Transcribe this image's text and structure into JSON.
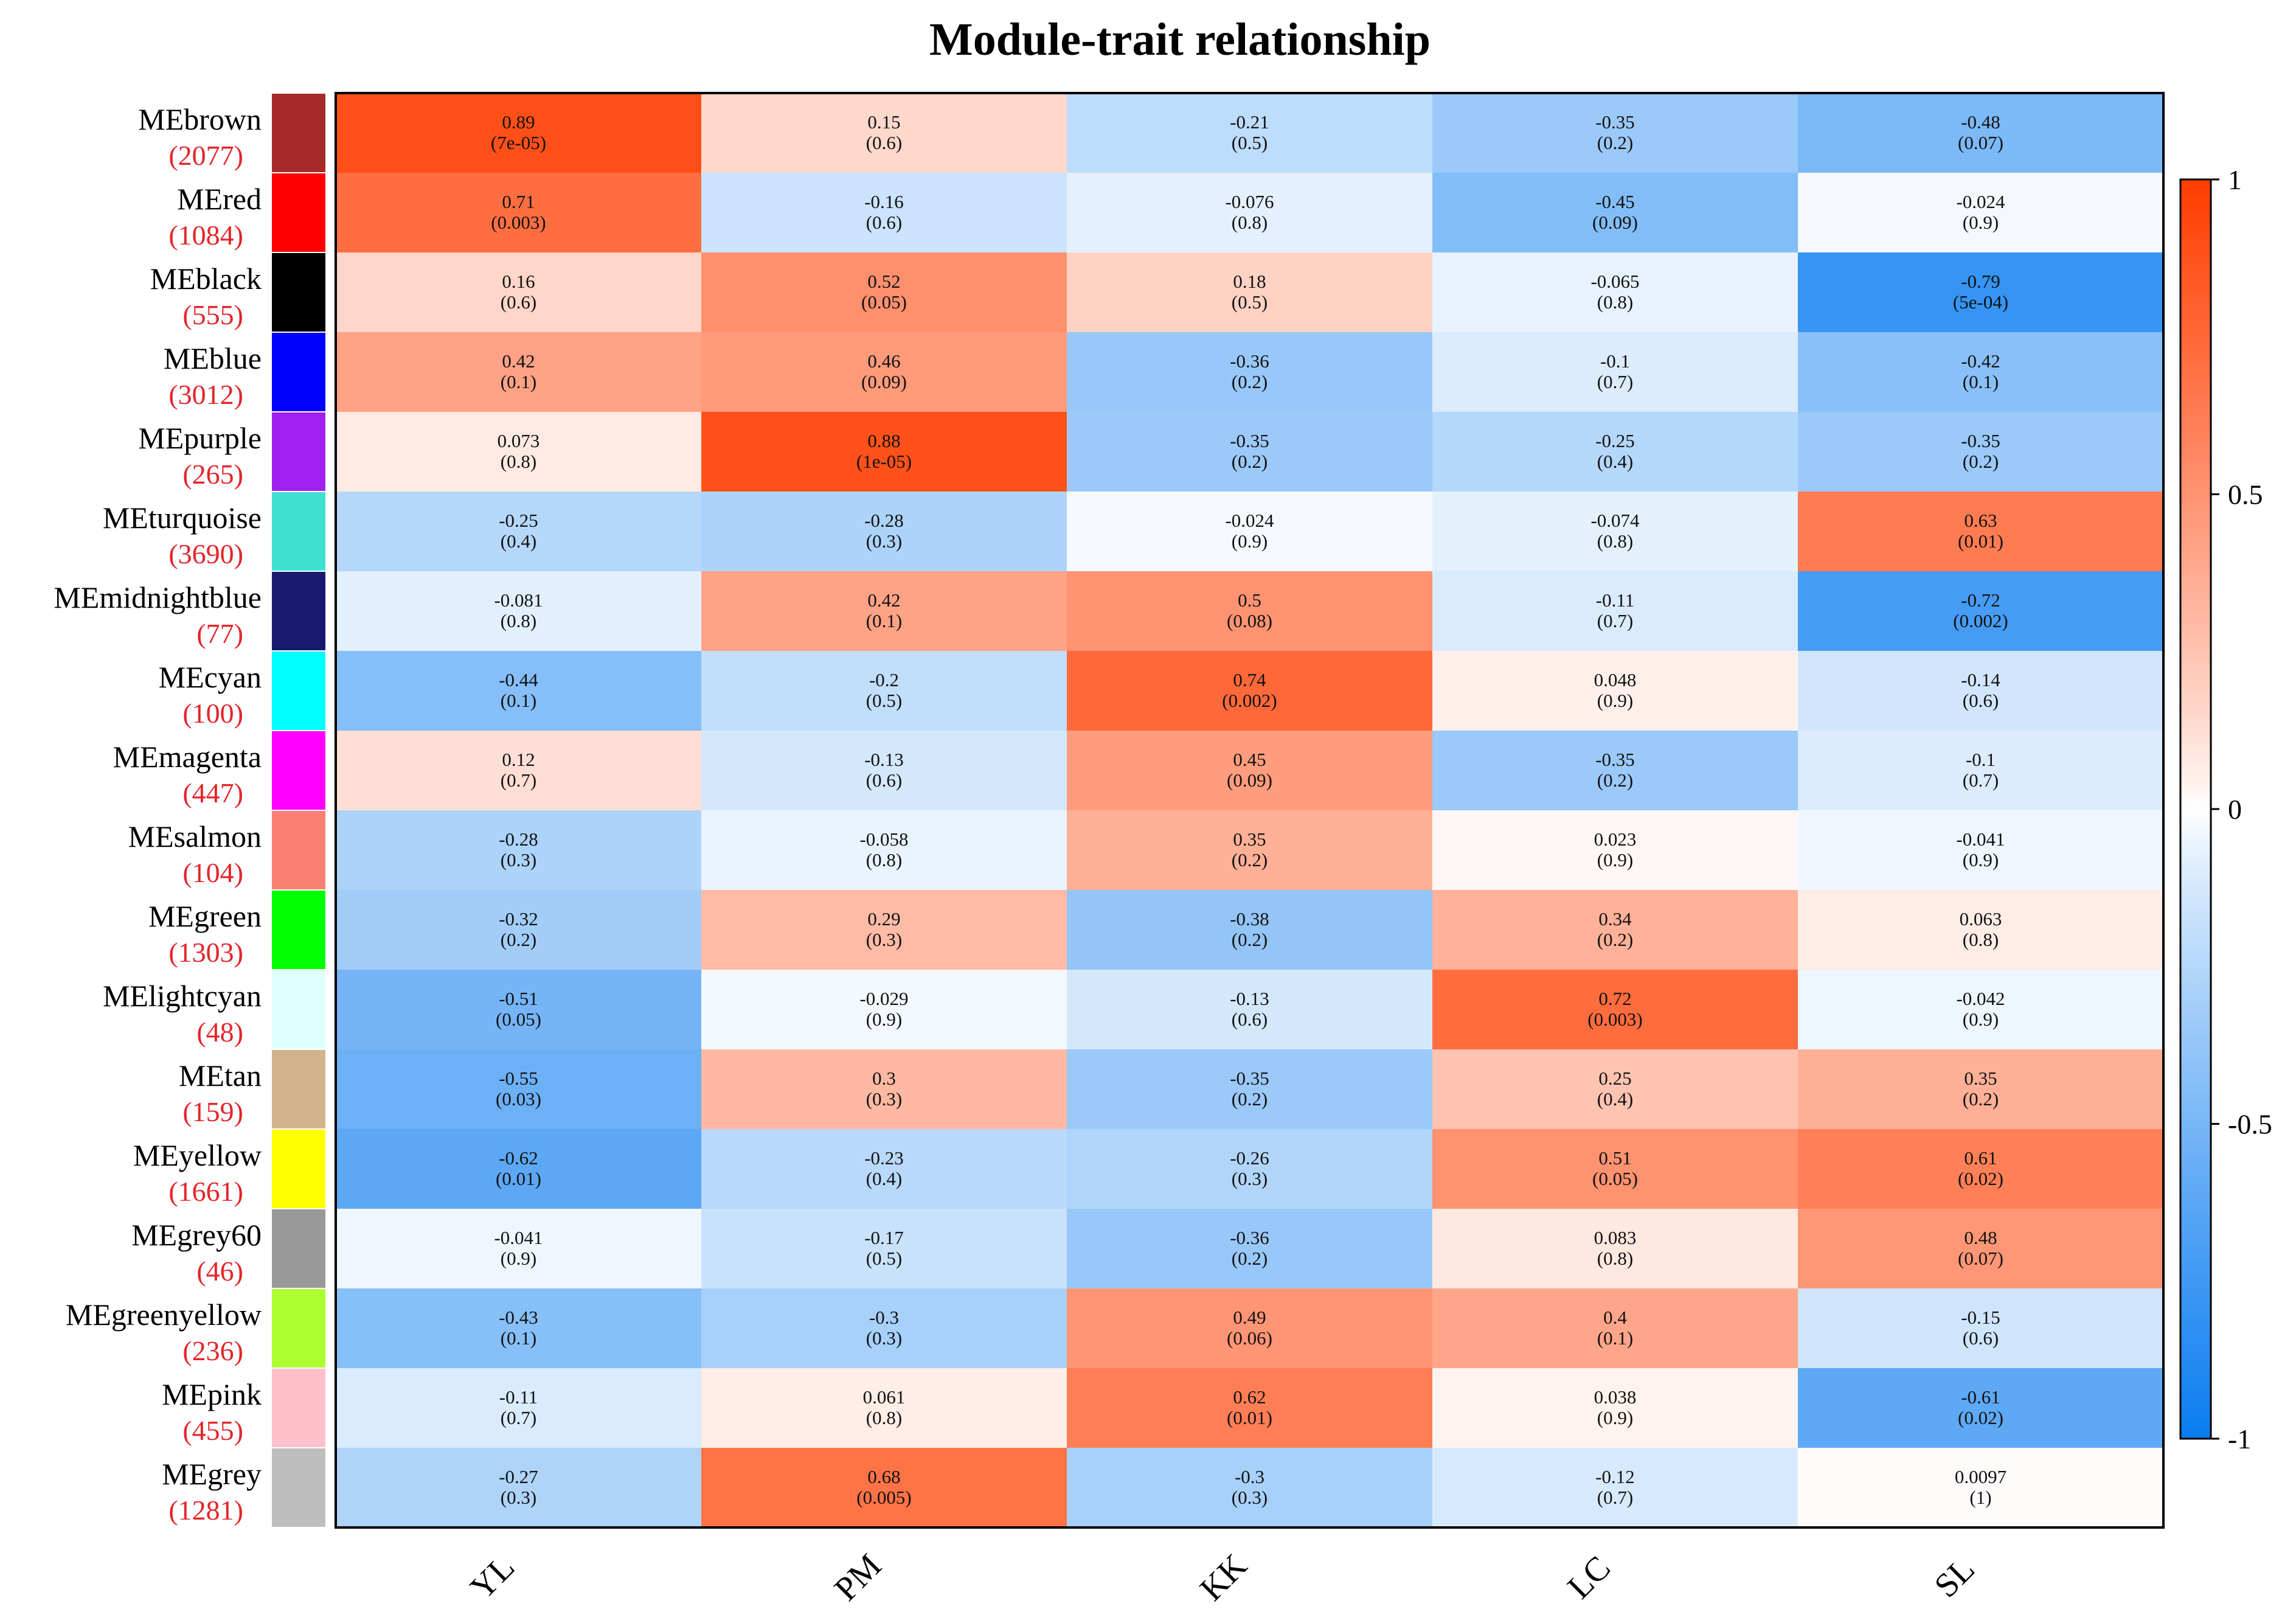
{
  "chart_data": {
    "type": "heatmap",
    "title": "Module-trait relationship",
    "columns": [
      "YL",
      "PM",
      "KK",
      "LC",
      "SL"
    ],
    "rows": [
      {
        "name": "MEbrown",
        "count": "(2077)",
        "swatch": "#A52A2A",
        "values": [
          "0.89",
          "0.15",
          "-0.21",
          "-0.35",
          "-0.48"
        ],
        "pvalues": [
          "(7e-05)",
          "(0.6)",
          "(0.5)",
          "(0.2)",
          "(0.07)"
        ]
      },
      {
        "name": "MEred",
        "count": "(1084)",
        "swatch": "#FF0000",
        "values": [
          "0.71",
          "-0.16",
          "-0.076",
          "-0.45",
          "-0.024"
        ],
        "pvalues": [
          "(0.003)",
          "(0.6)",
          "(0.8)",
          "(0.09)",
          "(0.9)"
        ]
      },
      {
        "name": "MEblack",
        "count": "(555)",
        "swatch": "#000000",
        "values": [
          "0.16",
          "0.52",
          "0.18",
          "-0.065",
          "-0.79"
        ],
        "pvalues": [
          "(0.6)",
          "(0.05)",
          "(0.5)",
          "(0.8)",
          "(5e-04)"
        ]
      },
      {
        "name": "MEblue",
        "count": "(3012)",
        "swatch": "#0000FF",
        "values": [
          "0.42",
          "0.46",
          "-0.36",
          "-0.1",
          "-0.42"
        ],
        "pvalues": [
          "(0.1)",
          "(0.09)",
          "(0.2)",
          "(0.7)",
          "(0.1)"
        ]
      },
      {
        "name": "MEpurple",
        "count": "(265)",
        "swatch": "#A020F0",
        "values": [
          "0.073",
          "0.88",
          "-0.35",
          "-0.25",
          "-0.35"
        ],
        "pvalues": [
          "(0.8)",
          "(1e-05)",
          "(0.2)",
          "(0.4)",
          "(0.2)"
        ]
      },
      {
        "name": "MEturquoise",
        "count": "(3690)",
        "swatch": "#40E0D0",
        "values": [
          "-0.25",
          "-0.28",
          "-0.024",
          "-0.074",
          "0.63"
        ],
        "pvalues": [
          "(0.4)",
          "(0.3)",
          "(0.9)",
          "(0.8)",
          "(0.01)"
        ]
      },
      {
        "name": "MEmidnightblue",
        "count": "(77)",
        "swatch": "#191970",
        "values": [
          "-0.081",
          "0.42",
          "0.5",
          "-0.11",
          "-0.72"
        ],
        "pvalues": [
          "(0.8)",
          "(0.1)",
          "(0.08)",
          "(0.7)",
          "(0.002)"
        ]
      },
      {
        "name": "MEcyan",
        "count": "(100)",
        "swatch": "#00FFFF",
        "values": [
          "-0.44",
          "-0.2",
          "0.74",
          "0.048",
          "-0.14"
        ],
        "pvalues": [
          "(0.1)",
          "(0.5)",
          "(0.002)",
          "(0.9)",
          "(0.6)"
        ]
      },
      {
        "name": "MEmagenta",
        "count": "(447)",
        "swatch": "#FF00FF",
        "values": [
          "0.12",
          "-0.13",
          "0.45",
          "-0.35",
          "-0.1"
        ],
        "pvalues": [
          "(0.7)",
          "(0.6)",
          "(0.09)",
          "(0.2)",
          "(0.7)"
        ]
      },
      {
        "name": "MEsalmon",
        "count": "(104)",
        "swatch": "#FA8072",
        "values": [
          "-0.28",
          "-0.058",
          "0.35",
          "0.023",
          "-0.041"
        ],
        "pvalues": [
          "(0.3)",
          "(0.8)",
          "(0.2)",
          "(0.9)",
          "(0.9)"
        ]
      },
      {
        "name": "MEgreen",
        "count": "(1303)",
        "swatch": "#00FF00",
        "values": [
          "-0.32",
          "0.29",
          "-0.38",
          "0.34",
          "0.063"
        ],
        "pvalues": [
          "(0.2)",
          "(0.3)",
          "(0.2)",
          "(0.2)",
          "(0.8)"
        ]
      },
      {
        "name": "MElightcyan",
        "count": "(48)",
        "swatch": "#E0FFFF",
        "values": [
          "-0.51",
          "-0.029",
          "-0.13",
          "0.72",
          "-0.042"
        ],
        "pvalues": [
          "(0.05)",
          "(0.9)",
          "(0.6)",
          "(0.003)",
          "(0.9)"
        ]
      },
      {
        "name": "MEtan",
        "count": "(159)",
        "swatch": "#D2B48C",
        "values": [
          "-0.55",
          "0.3",
          "-0.35",
          "0.25",
          "0.35"
        ],
        "pvalues": [
          "(0.03)",
          "(0.3)",
          "(0.2)",
          "(0.4)",
          "(0.2)"
        ]
      },
      {
        "name": "MEyellow",
        "count": "(1661)",
        "swatch": "#FFFF00",
        "values": [
          "-0.62",
          "-0.23",
          "-0.26",
          "0.51",
          "0.61"
        ],
        "pvalues": [
          "(0.01)",
          "(0.4)",
          "(0.3)",
          "(0.05)",
          "(0.02)"
        ]
      },
      {
        "name": "MEgrey60",
        "count": "(46)",
        "swatch": "#999999",
        "values": [
          "-0.041",
          "-0.17",
          "-0.36",
          "0.083",
          "0.48"
        ],
        "pvalues": [
          "(0.9)",
          "(0.5)",
          "(0.2)",
          "(0.8)",
          "(0.07)"
        ]
      },
      {
        "name": "MEgreenyellow",
        "count": "(236)",
        "swatch": "#ADFF2F",
        "values": [
          "-0.43",
          "-0.3",
          "0.49",
          "0.4",
          "-0.15"
        ],
        "pvalues": [
          "(0.1)",
          "(0.3)",
          "(0.06)",
          "(0.1)",
          "(0.6)"
        ]
      },
      {
        "name": "MEpink",
        "count": "(455)",
        "swatch": "#FFC0CB",
        "values": [
          "-0.11",
          "0.061",
          "0.62",
          "0.038",
          "-0.61"
        ],
        "pvalues": [
          "(0.7)",
          "(0.8)",
          "(0.01)",
          "(0.9)",
          "(0.02)"
        ]
      },
      {
        "name": "MEgrey",
        "count": "(1281)",
        "swatch": "#BEBEBE",
        "values": [
          "-0.27",
          "0.68",
          "-0.3",
          "-0.12",
          "0.0097"
        ],
        "pvalues": [
          "(0.3)",
          "(0.005)",
          "(0.3)",
          "(0.7)",
          "(1)"
        ]
      }
    ],
    "colorbar": {
      "range": [
        -1,
        1
      ],
      "ticks": [
        "1",
        "0.5",
        "0",
        "-0.5",
        "-1"
      ],
      "tick_values": [
        1,
        0.5,
        0,
        -0.5,
        -1
      ],
      "colors": {
        "positive": "#FF3D00",
        "neutral": "#FFFFFF",
        "negative": "#0A7CF0"
      }
    },
    "count_label_color": "#E4242A"
  }
}
